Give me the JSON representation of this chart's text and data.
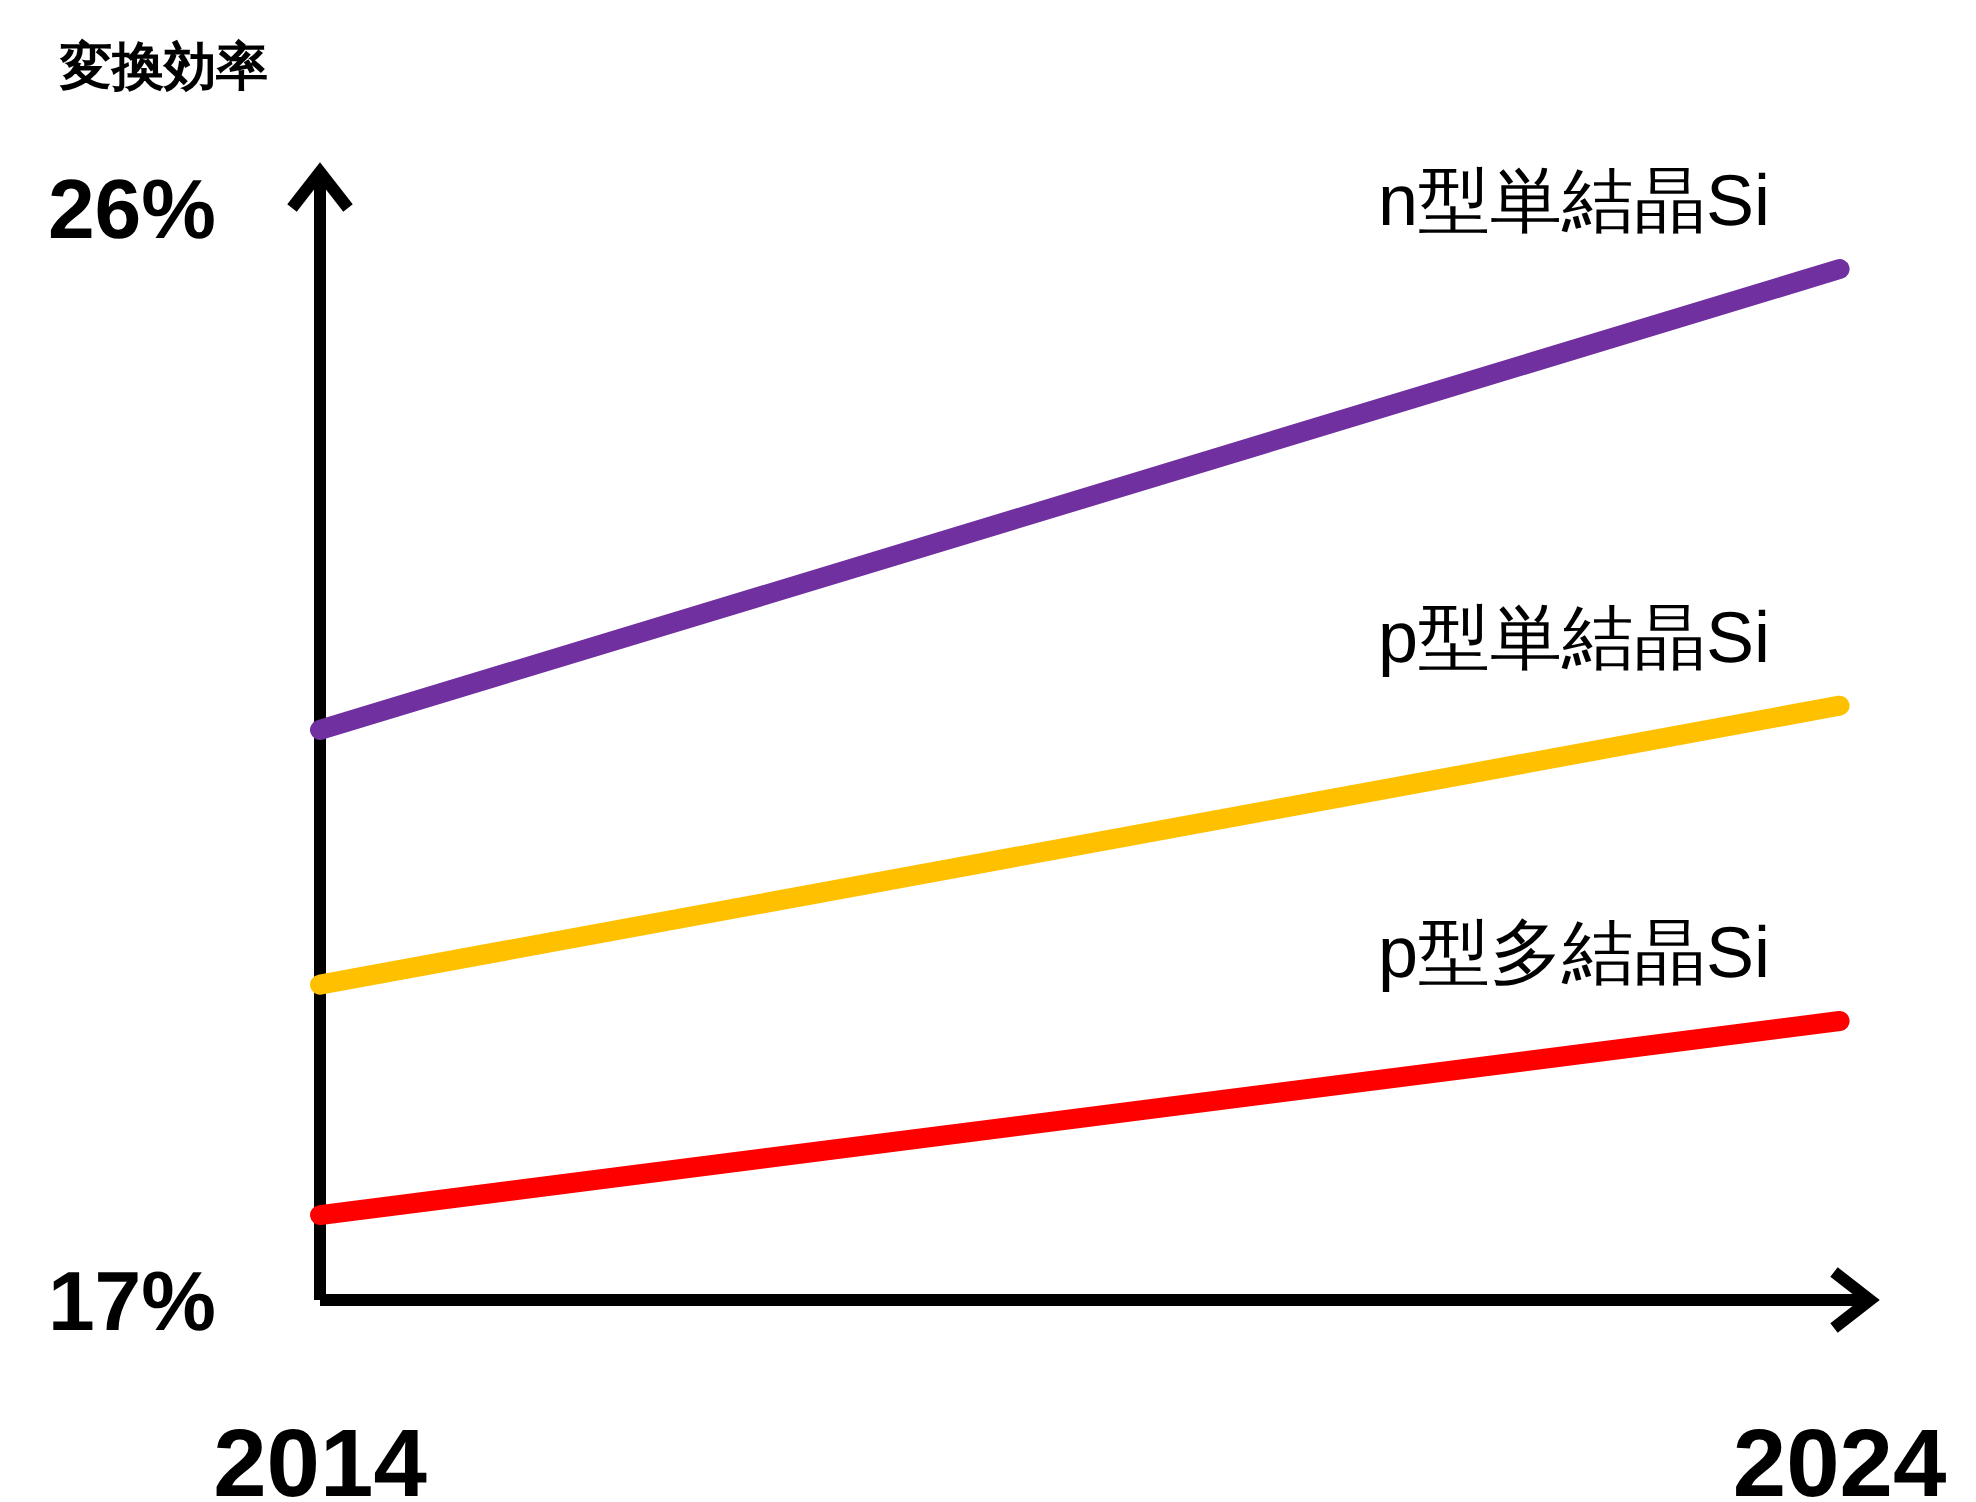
{
  "chart_data": {
    "type": "line",
    "ylabel": "変換効率",
    "x": [
      2014,
      2024
    ],
    "xlim": [
      2014,
      2024.2
    ],
    "xticks": [
      2014,
      2024
    ],
    "ylim": [
      17,
      26.3
    ],
    "yticks": [
      {
        "value": 17,
        "label": "17%"
      },
      {
        "value": 26,
        "label": "26%"
      }
    ],
    "grid": false,
    "legend": false,
    "marker": "none",
    "line_style": "solid",
    "series": [
      {
        "name": "n型単結晶Si",
        "color": "#7030a0",
        "values": [
          21.7,
          25.5
        ]
      },
      {
        "name": "p型単結晶Si",
        "color": "#ffc000",
        "values": [
          19.6,
          21.9
        ]
      },
      {
        "name": "p型多結晶Si",
        "color": "#ff0000",
        "values": [
          17.7,
          19.3
        ]
      }
    ]
  }
}
